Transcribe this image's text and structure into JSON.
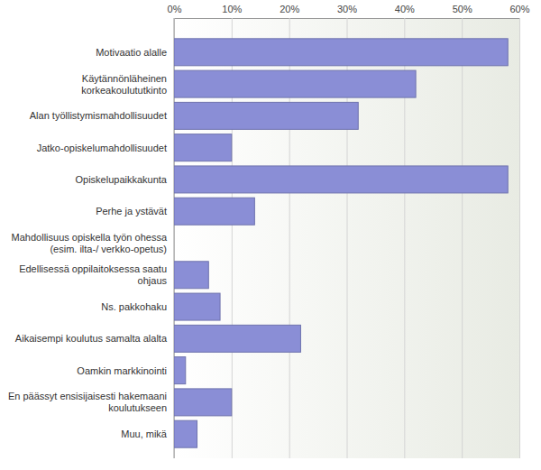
{
  "chart_data": {
    "type": "bar",
    "orientation": "horizontal",
    "categories": [
      "Motivaatio alalle",
      "Käytännönläheinen korkeakoulututkinto",
      "Alan työllistymismahdollisuudet",
      "Jatko-opiskelumahdollisuudet",
      "Opiskelupaikkakunta",
      "Perhe ja ystävät",
      "Mahdollisuus opiskella työn ohessa (esim. ilta-/ verkko-opetus)",
      "Edellisessä oppilaitoksessa saatu ohjaus",
      "Ns. pakkohaku",
      "Aikaisempi koulutus samalta alalta",
      "Oamkin markkinointi",
      "En päässyt ensisijaisesti hakemaani koulutukseen",
      "Muu, mikä"
    ],
    "values": [
      58,
      42,
      32,
      10,
      58,
      14,
      0,
      6,
      8,
      22,
      2,
      10,
      4
    ],
    "color": "#8a8ed6",
    "xlim": [
      0,
      60
    ],
    "xticks": [
      {
        "value": 0,
        "label": "0%"
      },
      {
        "value": 10,
        "label": "10%"
      },
      {
        "value": 20,
        "label": "20%"
      },
      {
        "value": 30,
        "label": "30%"
      },
      {
        "value": 40,
        "label": "40%"
      },
      {
        "value": 50,
        "label": "50%"
      },
      {
        "value": 60,
        "label": "60%"
      }
    ],
    "grid": true
  }
}
